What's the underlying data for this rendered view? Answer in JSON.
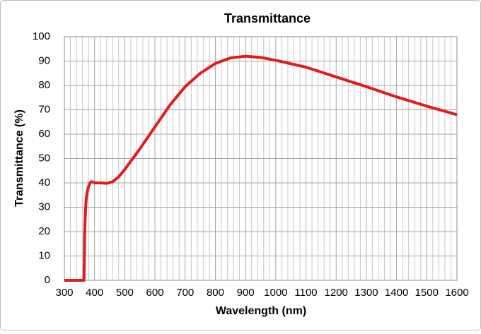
{
  "chart_data": {
    "type": "line",
    "title": "Transmittance",
    "x_label": "Wavelength (nm)",
    "y_label": "Transmittance (%)",
    "x": [
      300,
      360,
      365,
      367,
      369,
      372,
      376,
      380,
      385,
      390,
      395,
      400,
      420,
      440,
      460,
      480,
      500,
      550,
      600,
      650,
      700,
      750,
      800,
      850,
      900,
      950,
      1000,
      1100,
      1200,
      1300,
      1400,
      1500,
      1600
    ],
    "series": [
      {
        "name": "Transmittance",
        "color": "#e31b1b",
        "values": [
          0,
          0,
          0,
          18,
          26,
          33,
          36.5,
          38.5,
          40,
          40.5,
          40.3,
          40,
          40,
          39.8,
          40.5,
          42.5,
          45.5,
          54,
          63,
          72,
          79.5,
          85,
          89,
          91.3,
          92,
          91.5,
          90.3,
          87.5,
          83.5,
          79.5,
          75.3,
          71.5,
          68
        ]
      }
    ],
    "xlim": [
      300,
      1600
    ],
    "xticks": [
      300,
      400,
      500,
      600,
      700,
      800,
      900,
      1000,
      1100,
      1200,
      1300,
      1400,
      1500,
      1600
    ],
    "ylim": [
      0,
      100
    ],
    "yticks": [
      0,
      10,
      20,
      30,
      40,
      50,
      60,
      70,
      80,
      90,
      100
    ],
    "grid": true
  }
}
